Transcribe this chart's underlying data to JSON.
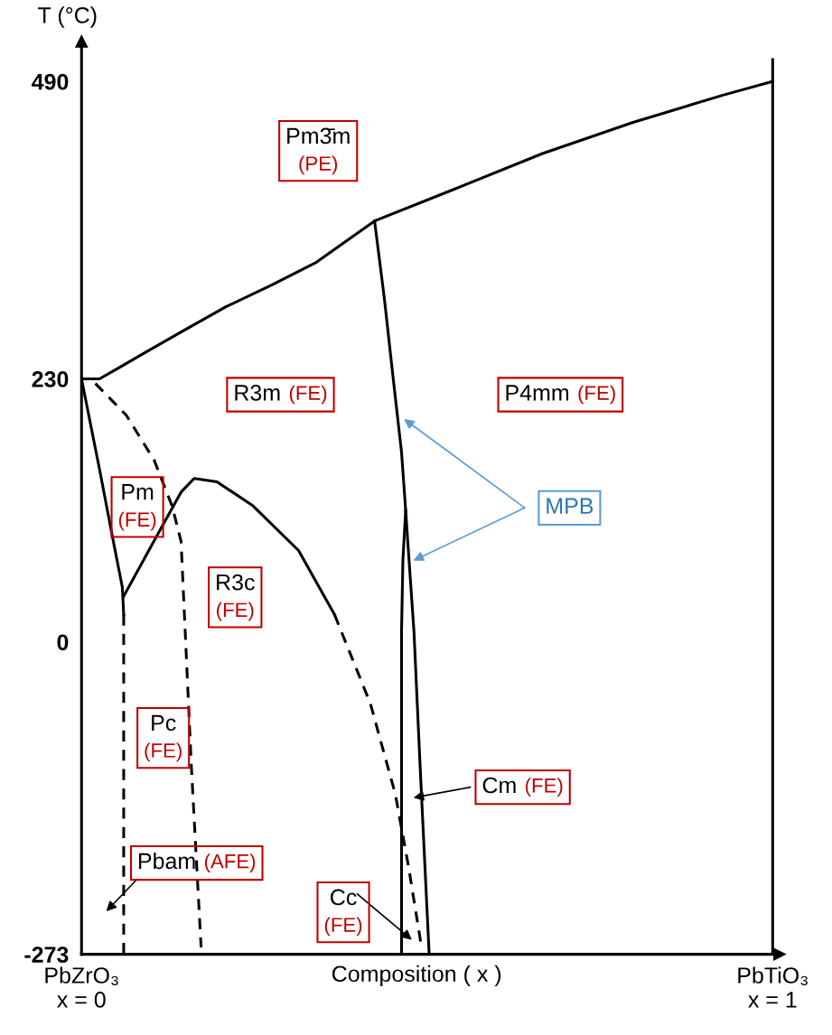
{
  "chart_data": {
    "type": "line",
    "ylabel": "T (°C)",
    "xlabel": "Composition ( x )",
    "xlim": [
      0,
      1.01
    ],
    "ylim": [
      -273,
      525
    ],
    "xticks": [
      {
        "value": 0,
        "label": "PbZrO₃\nx = 0"
      },
      {
        "value": 1,
        "label": "PbTiO₃\nx = 1"
      }
    ],
    "yticks": [
      490,
      230,
      0,
      -273
    ],
    "marker": "none",
    "series": [
      {
        "color": "#000000",
        "line_style": "solid",
        "x": [
          0,
          0.026,
          0.052,
          0.092,
          0.144,
          0.209,
          0.275,
          0.34,
          0.424,
          0.536,
          0.667,
          0.797,
          0.928,
          1.0
        ],
        "values": [
          230,
          230,
          239,
          253,
          271,
          293,
          312,
          332,
          368,
          395,
          427,
          454,
          478,
          490
        ]
      },
      {
        "color": "#000000",
        "line_style": "solid",
        "x": [
          0.424,
          0.438,
          0.451,
          0.463,
          0.469,
          0.472,
          0.481,
          0.49,
          0.503
        ],
        "values": [
          368,
          301,
          230,
          166,
          115,
          88,
          9,
          -110,
          -273
        ]
      },
      {
        "color": "#000000",
        "line_style": "solid",
        "x": [
          0.469,
          0.465,
          0.463,
          0.463
        ],
        "values": [
          115,
          72,
          9,
          -273
        ]
      },
      {
        "color": "#000000",
        "line_style": "solid",
        "x": [
          0,
          0.026,
          0.046,
          0.059,
          0.061
        ],
        "values": [
          230,
          151,
          88,
          48,
          24
        ]
      },
      {
        "color": "#000000",
        "line_style": "dashed",
        "x": [
          0.061,
          0.061
        ],
        "values": [
          24,
          -273
        ]
      },
      {
        "color": "#000000",
        "line_style": "solid",
        "x": [
          0.061,
          0.111,
          0.144,
          0.163,
          0.196,
          0.248,
          0.314,
          0.366
        ],
        "values": [
          40,
          95,
          131,
          143,
          140,
          119,
          80,
          24
        ]
      },
      {
        "color": "#000000",
        "line_style": "dashed",
        "x": [
          0.366,
          0.418,
          0.454,
          0.473,
          0.492
        ],
        "values": [
          24,
          -54,
          -133,
          -196,
          -267
        ]
      },
      {
        "color": "#000000",
        "line_style": "dashed",
        "x": [
          0.02,
          0.065,
          0.105,
          0.131,
          0.144,
          0.15,
          0.159,
          0.173
        ],
        "values": [
          226,
          198,
          159,
          119,
          88,
          9,
          -110,
          -267
        ]
      }
    ],
    "ref_lines": [
      {
        "axis": "x",
        "value": 1,
        "color": "#000000",
        "line_style": "solid"
      }
    ],
    "annotations": [
      "Pm3̄m",
      "(PE)",
      "R3m",
      "(FE)",
      "P4mm",
      "(FE)",
      "Pm",
      "(FE)",
      "R3c",
      "(FE)",
      "Pc",
      "(FE)",
      "Cm",
      "(FE)",
      "Pbam",
      "(AFE)",
      "Cc",
      "(FE)",
      "MPB"
    ]
  }
}
